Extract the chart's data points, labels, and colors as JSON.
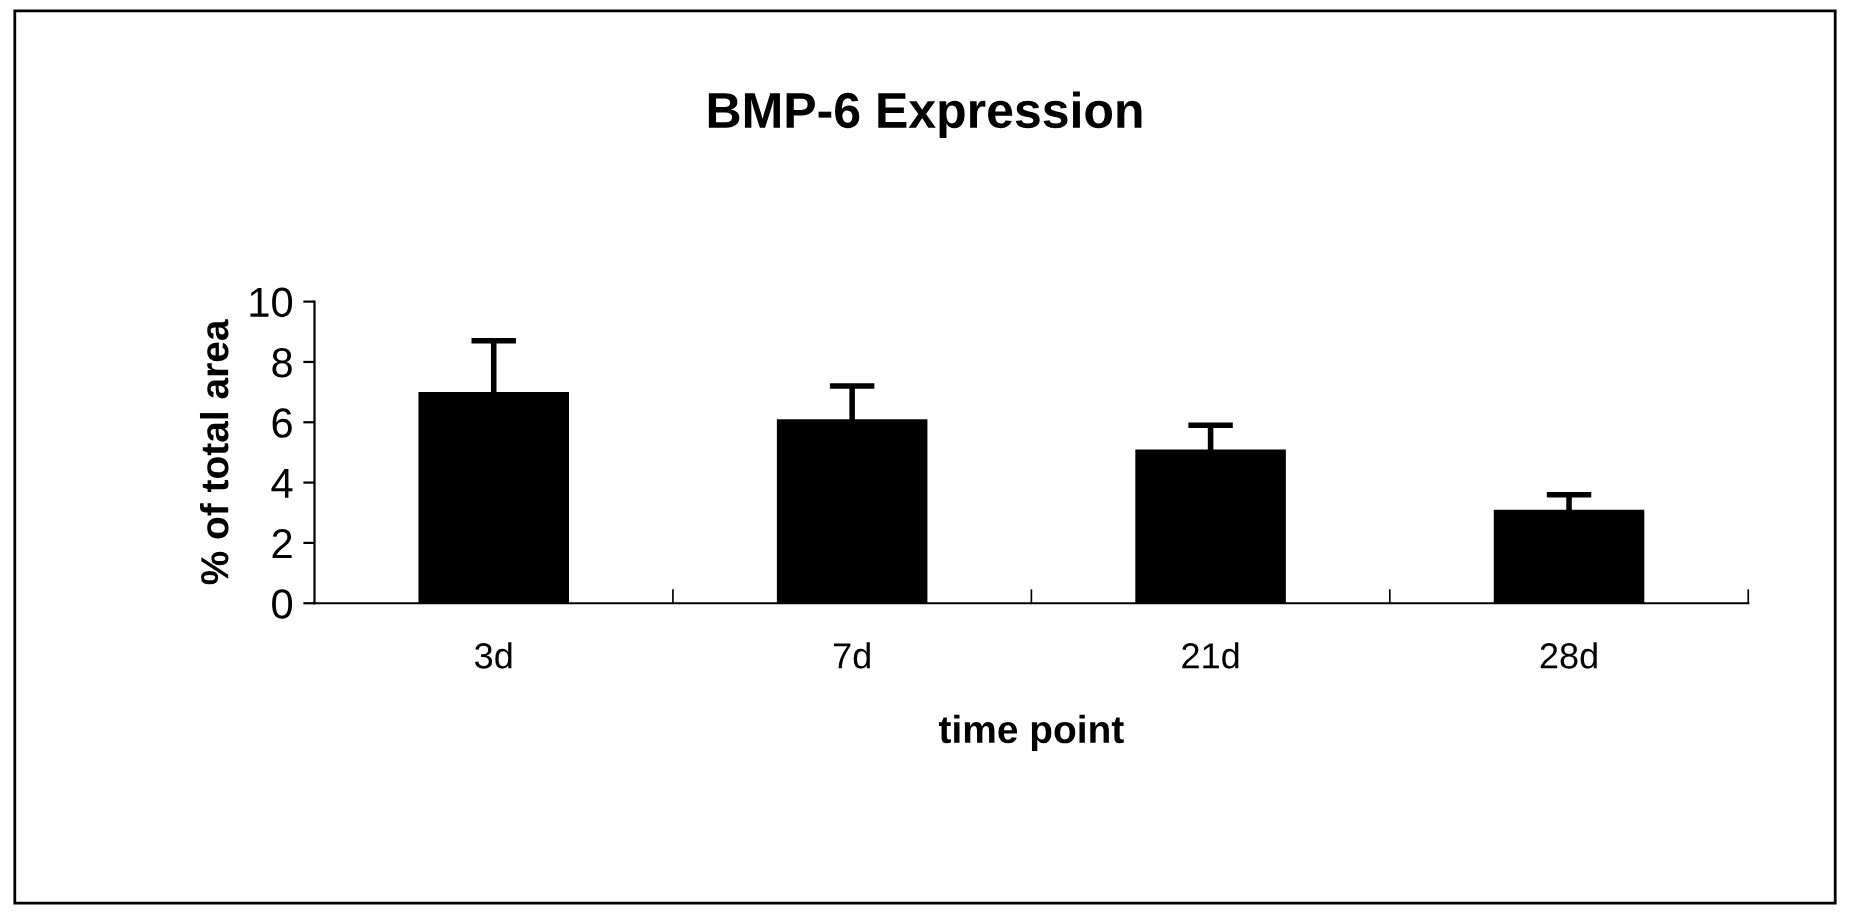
{
  "chart_data": {
    "type": "bar",
    "title": "BMP-6 Expression",
    "xlabel": "time point",
    "ylabel": "% of total area",
    "categories": [
      "3d",
      "7d",
      "21d",
      "28d"
    ],
    "values": [
      7.0,
      6.1,
      5.1,
      3.1
    ],
    "errors": [
      1.7,
      1.1,
      0.8,
      0.5
    ],
    "color": "#000000",
    "ylim": [
      0,
      10
    ],
    "yticks": [
      0,
      2,
      4,
      6,
      8,
      10
    ],
    "grid": false,
    "legend": false
  }
}
